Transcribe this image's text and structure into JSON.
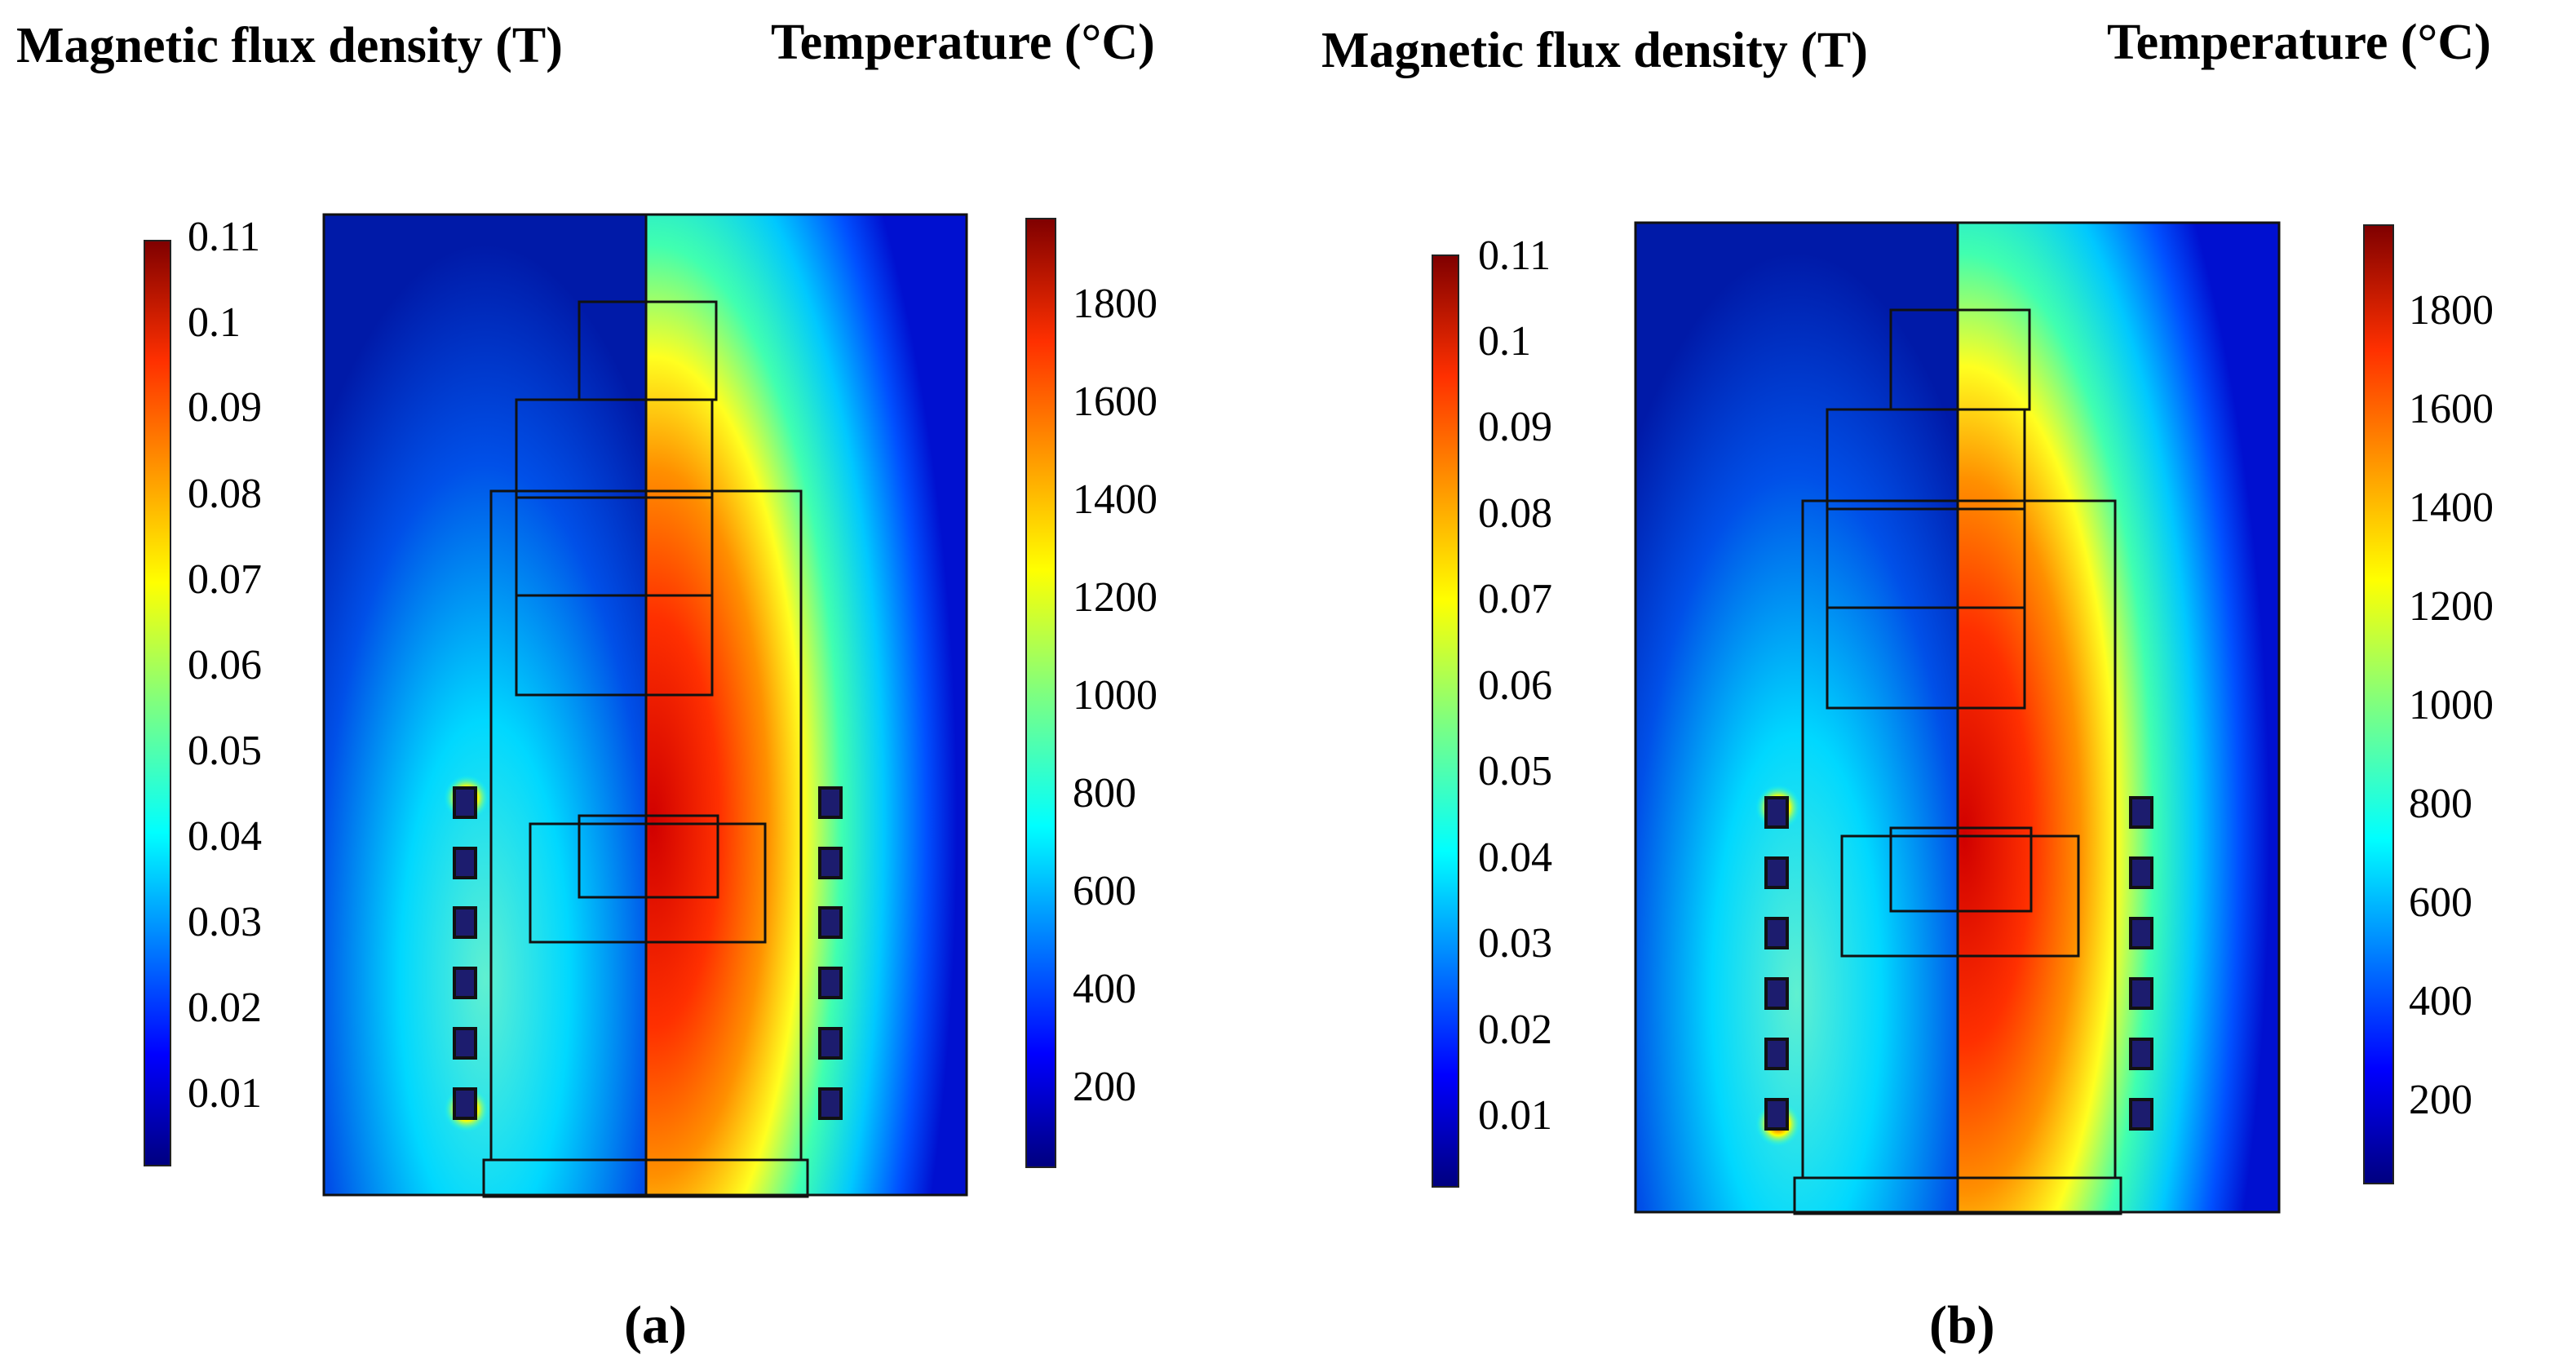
{
  "panels": [
    {
      "id": "a",
      "caption": "(a)",
      "left_title": "Magnetic flux density (T)",
      "right_title": "Temperature  (°C)",
      "flux_scale": {
        "ticks": [
          "0.11",
          "0.1",
          "0.09",
          "0.08",
          "0.07",
          "0.06",
          "0.05",
          "0.04",
          "0.03",
          "0.02",
          "0.01"
        ]
      },
      "temp_scale": {
        "ticks": [
          "1800",
          "1600",
          "1400",
          "1200",
          "1000",
          "800",
          "600",
          "400",
          "200"
        ]
      }
    },
    {
      "id": "b",
      "caption": "(b)",
      "left_title": "Magnetic flux density (T)",
      "right_title": "Temperature  (°C)",
      "flux_scale": {
        "ticks": [
          "0.11",
          "0.1",
          "0.09",
          "0.08",
          "0.07",
          "0.06",
          "0.05",
          "0.04",
          "0.03",
          "0.02",
          "0.01"
        ]
      },
      "temp_scale": {
        "ticks": [
          "1800",
          "1600",
          "1400",
          "1200",
          "1000",
          "800",
          "600",
          "400",
          "200"
        ]
      }
    }
  ],
  "colors": {
    "jet": [
      "#00007f",
      "#0000ff",
      "#007fff",
      "#00ffff",
      "#7fff7f",
      "#ffff00",
      "#ff7f00",
      "#ff0000",
      "#7f0000"
    ]
  }
}
